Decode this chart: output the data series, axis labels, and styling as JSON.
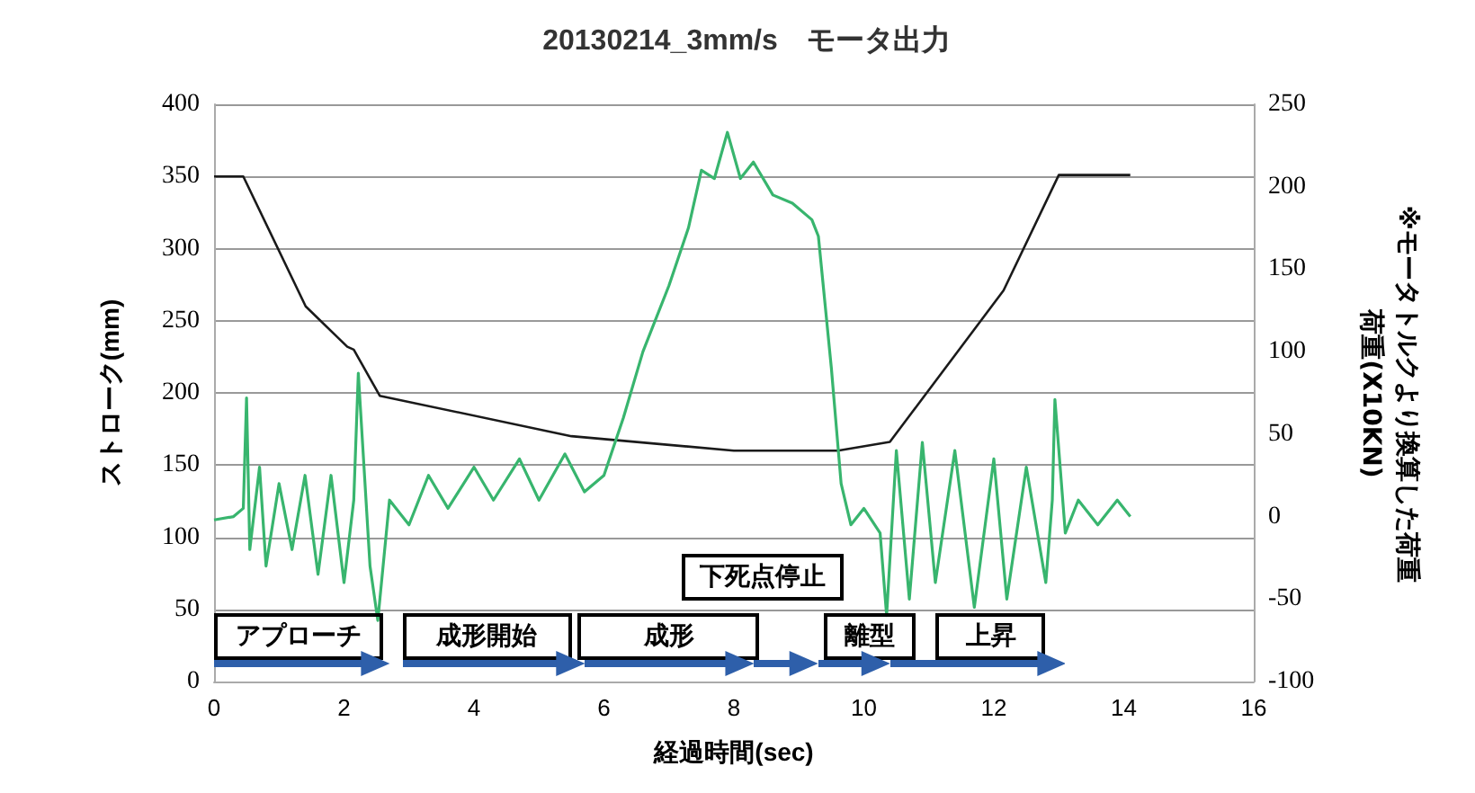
{
  "chart_data": {
    "type": "line",
    "title": "20130214_3mm/s　モータ出力",
    "xlabel": "経過時間(sec)",
    "ylabel": "ストローク(mm)",
    "y2label": "荷重(X10KN)\n※モータトルクより換算した荷重",
    "annotations": [
      "アプローチ",
      "成形開始",
      "成形",
      "下死点停止",
      "離型",
      "上昇"
    ],
    "xlim": [
      0,
      16
    ],
    "xticks": [
      0,
      2,
      4,
      6,
      8,
      10,
      12,
      14,
      16
    ],
    "ylim": [
      0,
      400
    ],
    "yticks": [
      0,
      50,
      100,
      150,
      200,
      250,
      300,
      350,
      400
    ],
    "y2lim": [
      -100,
      250
    ],
    "y2ticks": [
      -100,
      -50,
      0,
      50,
      100,
      150,
      200,
      250
    ],
    "grid": "y",
    "marker": "none",
    "line_style": "solid",
    "series": [
      {
        "color": "#1a1a1a",
        "x": [
          0,
          0.45,
          1.41,
          2.05,
          2.15,
          2.55,
          5.5,
          8.0,
          9.6,
          10.4,
          12.15,
          13.0,
          14.1
        ],
        "values": [
          350,
          350,
          260,
          232,
          230,
          198,
          170,
          160,
          160,
          166,
          271,
          351,
          351
        ]
      },
      {
        "color": "#38b56e",
        "axis": "y2",
        "x": [
          0,
          0.3,
          0.45,
          0.5,
          0.55,
          0.7,
          0.8,
          1.0,
          1.2,
          1.4,
          1.6,
          1.8,
          2.0,
          2.15,
          2.22,
          2.4,
          2.52,
          2.7,
          3.0,
          3.3,
          3.6,
          4.0,
          4.3,
          4.7,
          5.0,
          5.4,
          5.7,
          6.0,
          6.3,
          6.6,
          7.0,
          7.3,
          7.5,
          7.7,
          7.9,
          8.1,
          8.3,
          8.6,
          8.9,
          9.2,
          9.3,
          9.5,
          9.65,
          9.8,
          10.0,
          10.25,
          10.35,
          10.5,
          10.7,
          10.9,
          11.1,
          11.4,
          11.7,
          12.0,
          12.2,
          12.5,
          12.8,
          12.9,
          12.94,
          13.1,
          13.3,
          13.6,
          13.9,
          14.1
        ],
        "values": [
          -2,
          0,
          5,
          72,
          -20,
          30,
          -30,
          20,
          -20,
          25,
          -35,
          25,
          -40,
          10,
          87,
          -30,
          -63,
          10,
          -5,
          25,
          5,
          30,
          10,
          35,
          10,
          38,
          15,
          25,
          60,
          100,
          140,
          175,
          210,
          205,
          233,
          205,
          215,
          195,
          190,
          180,
          170,
          90,
          20,
          -5,
          5,
          -10,
          -60,
          40,
          -50,
          45,
          -40,
          40,
          -55,
          35,
          -50,
          30,
          -40,
          10,
          71,
          -10,
          10,
          -5,
          10,
          0
        ]
      }
    ]
  }
}
